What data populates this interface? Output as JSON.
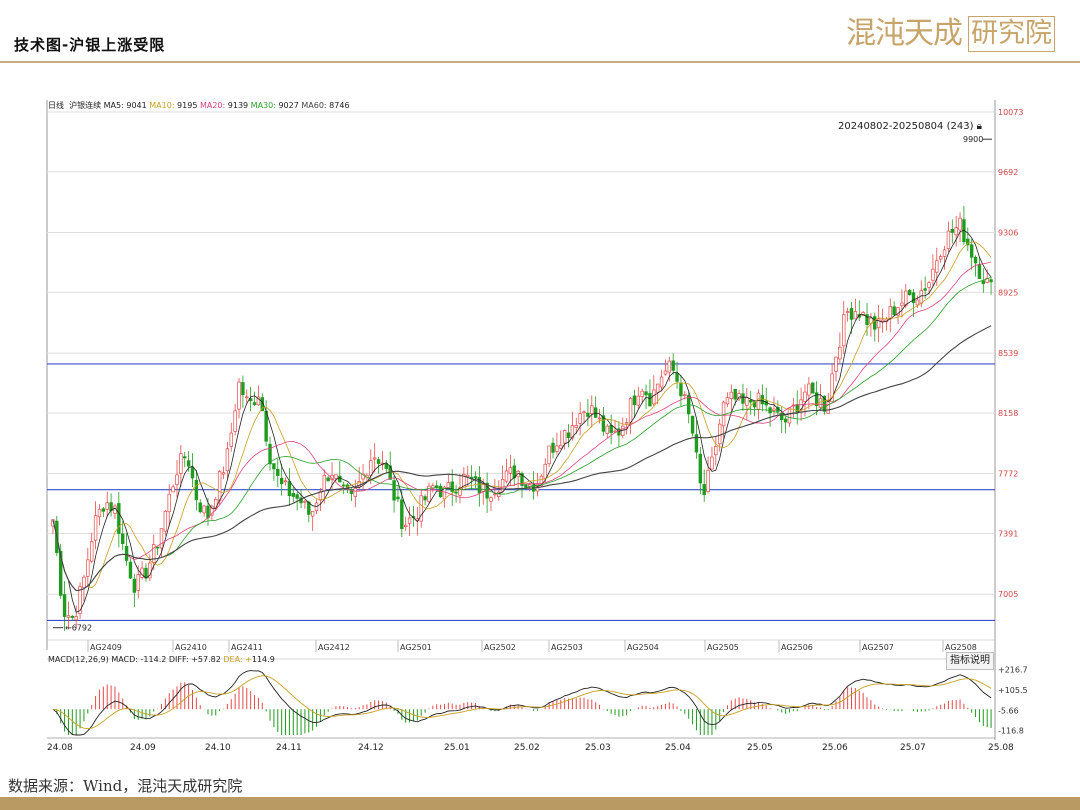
{
  "page": {
    "title": "技术图-沪银上涨受限",
    "logo_text_a": "混沌天成",
    "logo_text_b": "研究院",
    "source": "数据来源：Wind，混沌天成研究院"
  },
  "chart_data": {
    "type": "candlestick",
    "period_label": "日线",
    "instrument": "沪银连续",
    "date_range_label": "20240802-20250804 (243)",
    "ma_legend": [
      {
        "name": "MA5",
        "value": "9041",
        "color": "#222222"
      },
      {
        "name": "MA10",
        "value": "9195",
        "color": "#c8a020"
      },
      {
        "name": "MA20",
        "value": "9139",
        "color": "#e2407a"
      },
      {
        "name": "MA30",
        "value": "9027",
        "color": "#2aa02a"
      },
      {
        "name": "MA60",
        "value": "8746",
        "color": "#444444"
      }
    ],
    "price_axis_ticks": [
      "10073",
      "9692",
      "9306",
      "8925",
      "8539",
      "8158",
      "7772",
      "7391",
      "7005"
    ],
    "price_range": [
      6790,
      10073
    ],
    "high_marker": "9900",
    "low_marker": "6792",
    "horizontal_levels": [
      8470,
      7670,
      6838
    ],
    "contract_labels": [
      "AG2409",
      "AG2410",
      "AG2411",
      "AG2412",
      "AG2501",
      "AG2502",
      "AG2503",
      "AG2504",
      "AG2505",
      "AG2506",
      "AG2507",
      "AG2508"
    ],
    "x_axis_labels": [
      "24.08",
      "24.09",
      "24.10",
      "24.11",
      "24.12",
      "25.01",
      "25.02",
      "25.03",
      "25.04",
      "25.05",
      "25.06",
      "25.07",
      "25.08"
    ],
    "close_path": [
      7480,
      6900,
      6850,
      7100,
      7450,
      7600,
      7550,
      7250,
      7050,
      7150,
      7300,
      7550,
      7800,
      7900,
      7600,
      7500,
      7700,
      7900,
      8350,
      8200,
      8300,
      7900,
      7700,
      7650,
      7600,
      7500,
      7700,
      7800,
      7650,
      7600,
      7750,
      7900,
      7850,
      7650,
      7450,
      7500,
      7600,
      7700,
      7650,
      7700,
      7750,
      7700,
      7650,
      7700,
      7750,
      7800,
      7700,
      7720,
      7900,
      8000,
      8050,
      8150,
      8200,
      8100,
      8000,
      8050,
      8200,
      8350,
      8250,
      8400,
      8450,
      8300,
      8050,
      7600,
      7850,
      8200,
      8250,
      8200,
      8250,
      8200,
      8150,
      8100,
      8200,
      8300,
      8250,
      8200,
      8550,
      8800,
      8820,
      8750,
      8700,
      8780,
      8850,
      8900,
      8920,
      9000,
      9200,
      9300,
      9350,
      9200,
      9050,
      8950
    ],
    "volatility": 120,
    "macd": {
      "params": "MACD(12,26,9)",
      "macd": "-114.2",
      "diff": "57.82",
      "dea": "114.9",
      "ticks": [
        "216.7",
        "105.5",
        "-5.66",
        "-116.8"
      ],
      "range": [
        -140,
        240
      ]
    },
    "colors": {
      "up": "#e84a4a",
      "down": "#1f9b1f",
      "level": "#3b4fc8",
      "grid": "#dddddd",
      "axis_text": "#d64545"
    }
  },
  "ui": {
    "guide_button": "指标说明"
  }
}
